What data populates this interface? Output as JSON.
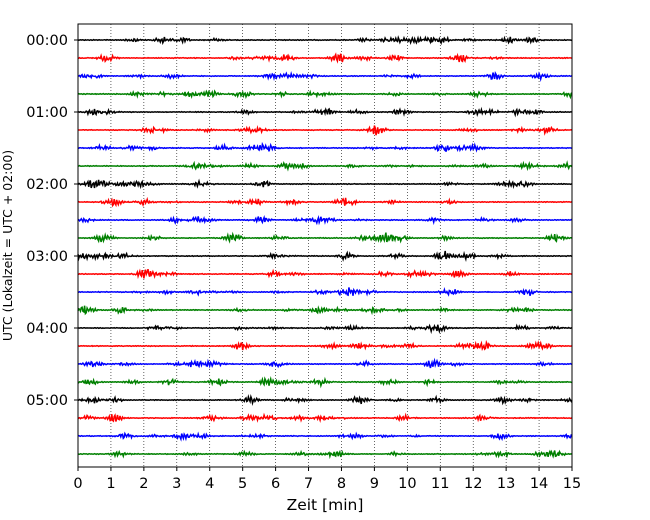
{
  "chart_data": {
    "type": "line",
    "chart_kind": "helicorder-seismogram",
    "xlabel": "Zeit  [min]",
    "ylabel": "UTC (Lokalzeit = UTC + 02:00)",
    "xlim": [
      0,
      15
    ],
    "x_ticks": [
      0,
      1,
      2,
      3,
      4,
      5,
      6,
      7,
      8,
      9,
      10,
      11,
      12,
      13,
      14,
      15
    ],
    "x_gridlines": "dotted vertical at each minute",
    "y_ticks": [
      "00:00",
      "01:00",
      "02:00",
      "03:00",
      "04:00",
      "05:00"
    ],
    "rows_per_hour": 4,
    "row_minutes": 15,
    "trace_count": 24,
    "trace_start_hours": [
      0,
      0.25,
      0.5,
      0.75,
      1,
      1.25,
      1.5,
      1.75,
      2,
      2.25,
      2.5,
      2.75,
      3,
      3.25,
      3.5,
      3.75,
      4,
      4.25,
      4.5,
      4.75,
      5,
      5.25,
      5.5,
      5.75
    ],
    "color_cycle": [
      "#000000",
      "#ff0000",
      "#0000ff",
      "#008000"
    ],
    "series_note_values": "continuous low-amplitude background noise; no distinct events"
  }
}
